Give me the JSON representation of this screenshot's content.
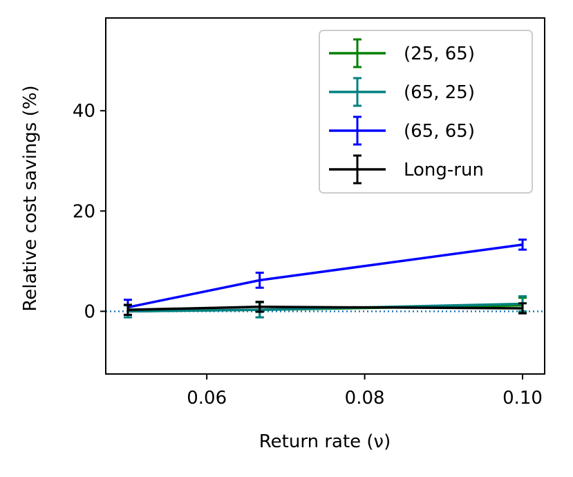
{
  "chart_data": {
    "type": "line",
    "title": "",
    "xlabel": "Return rate (ν)",
    "ylabel": "Relative cost savings (%)",
    "xlim": [
      0.0472,
      0.1028
    ],
    "ylim": [
      -12.5,
      58.5
    ],
    "x": [
      0.05,
      0.0667,
      0.1
    ],
    "xticks": [
      0.06,
      0.08,
      0.1
    ],
    "xtick_labels": [
      "0.06",
      "0.08",
      "0.10"
    ],
    "yticks": [
      0,
      20,
      40
    ],
    "ytick_labels": [
      "0",
      "20",
      "40"
    ],
    "grid": false,
    "legend_position": "top-right",
    "reference_line": {
      "y": 0,
      "style": "dotted",
      "color": "#1f77b4"
    },
    "series": [
      {
        "name": "(25, 65)",
        "color": "#008000",
        "values": [
          0.0,
          0.3,
          1.2
        ],
        "errors": [
          1.2,
          1.5,
          1.5
        ]
      },
      {
        "name": "(65, 25)",
        "color": "#008080",
        "values": [
          0.0,
          0.3,
          1.5
        ],
        "errors": [
          1.2,
          1.5,
          1.5
        ]
      },
      {
        "name": "(65, 65)",
        "color": "#0000ff",
        "values": [
          0.8,
          6.2,
          13.3
        ],
        "errors": [
          1.5,
          1.5,
          1.0
        ]
      },
      {
        "name": "Long-run",
        "color": "#000000",
        "values": [
          0.3,
          0.9,
          0.6
        ],
        "errors": [
          1.0,
          1.0,
          1.0
        ]
      }
    ]
  }
}
